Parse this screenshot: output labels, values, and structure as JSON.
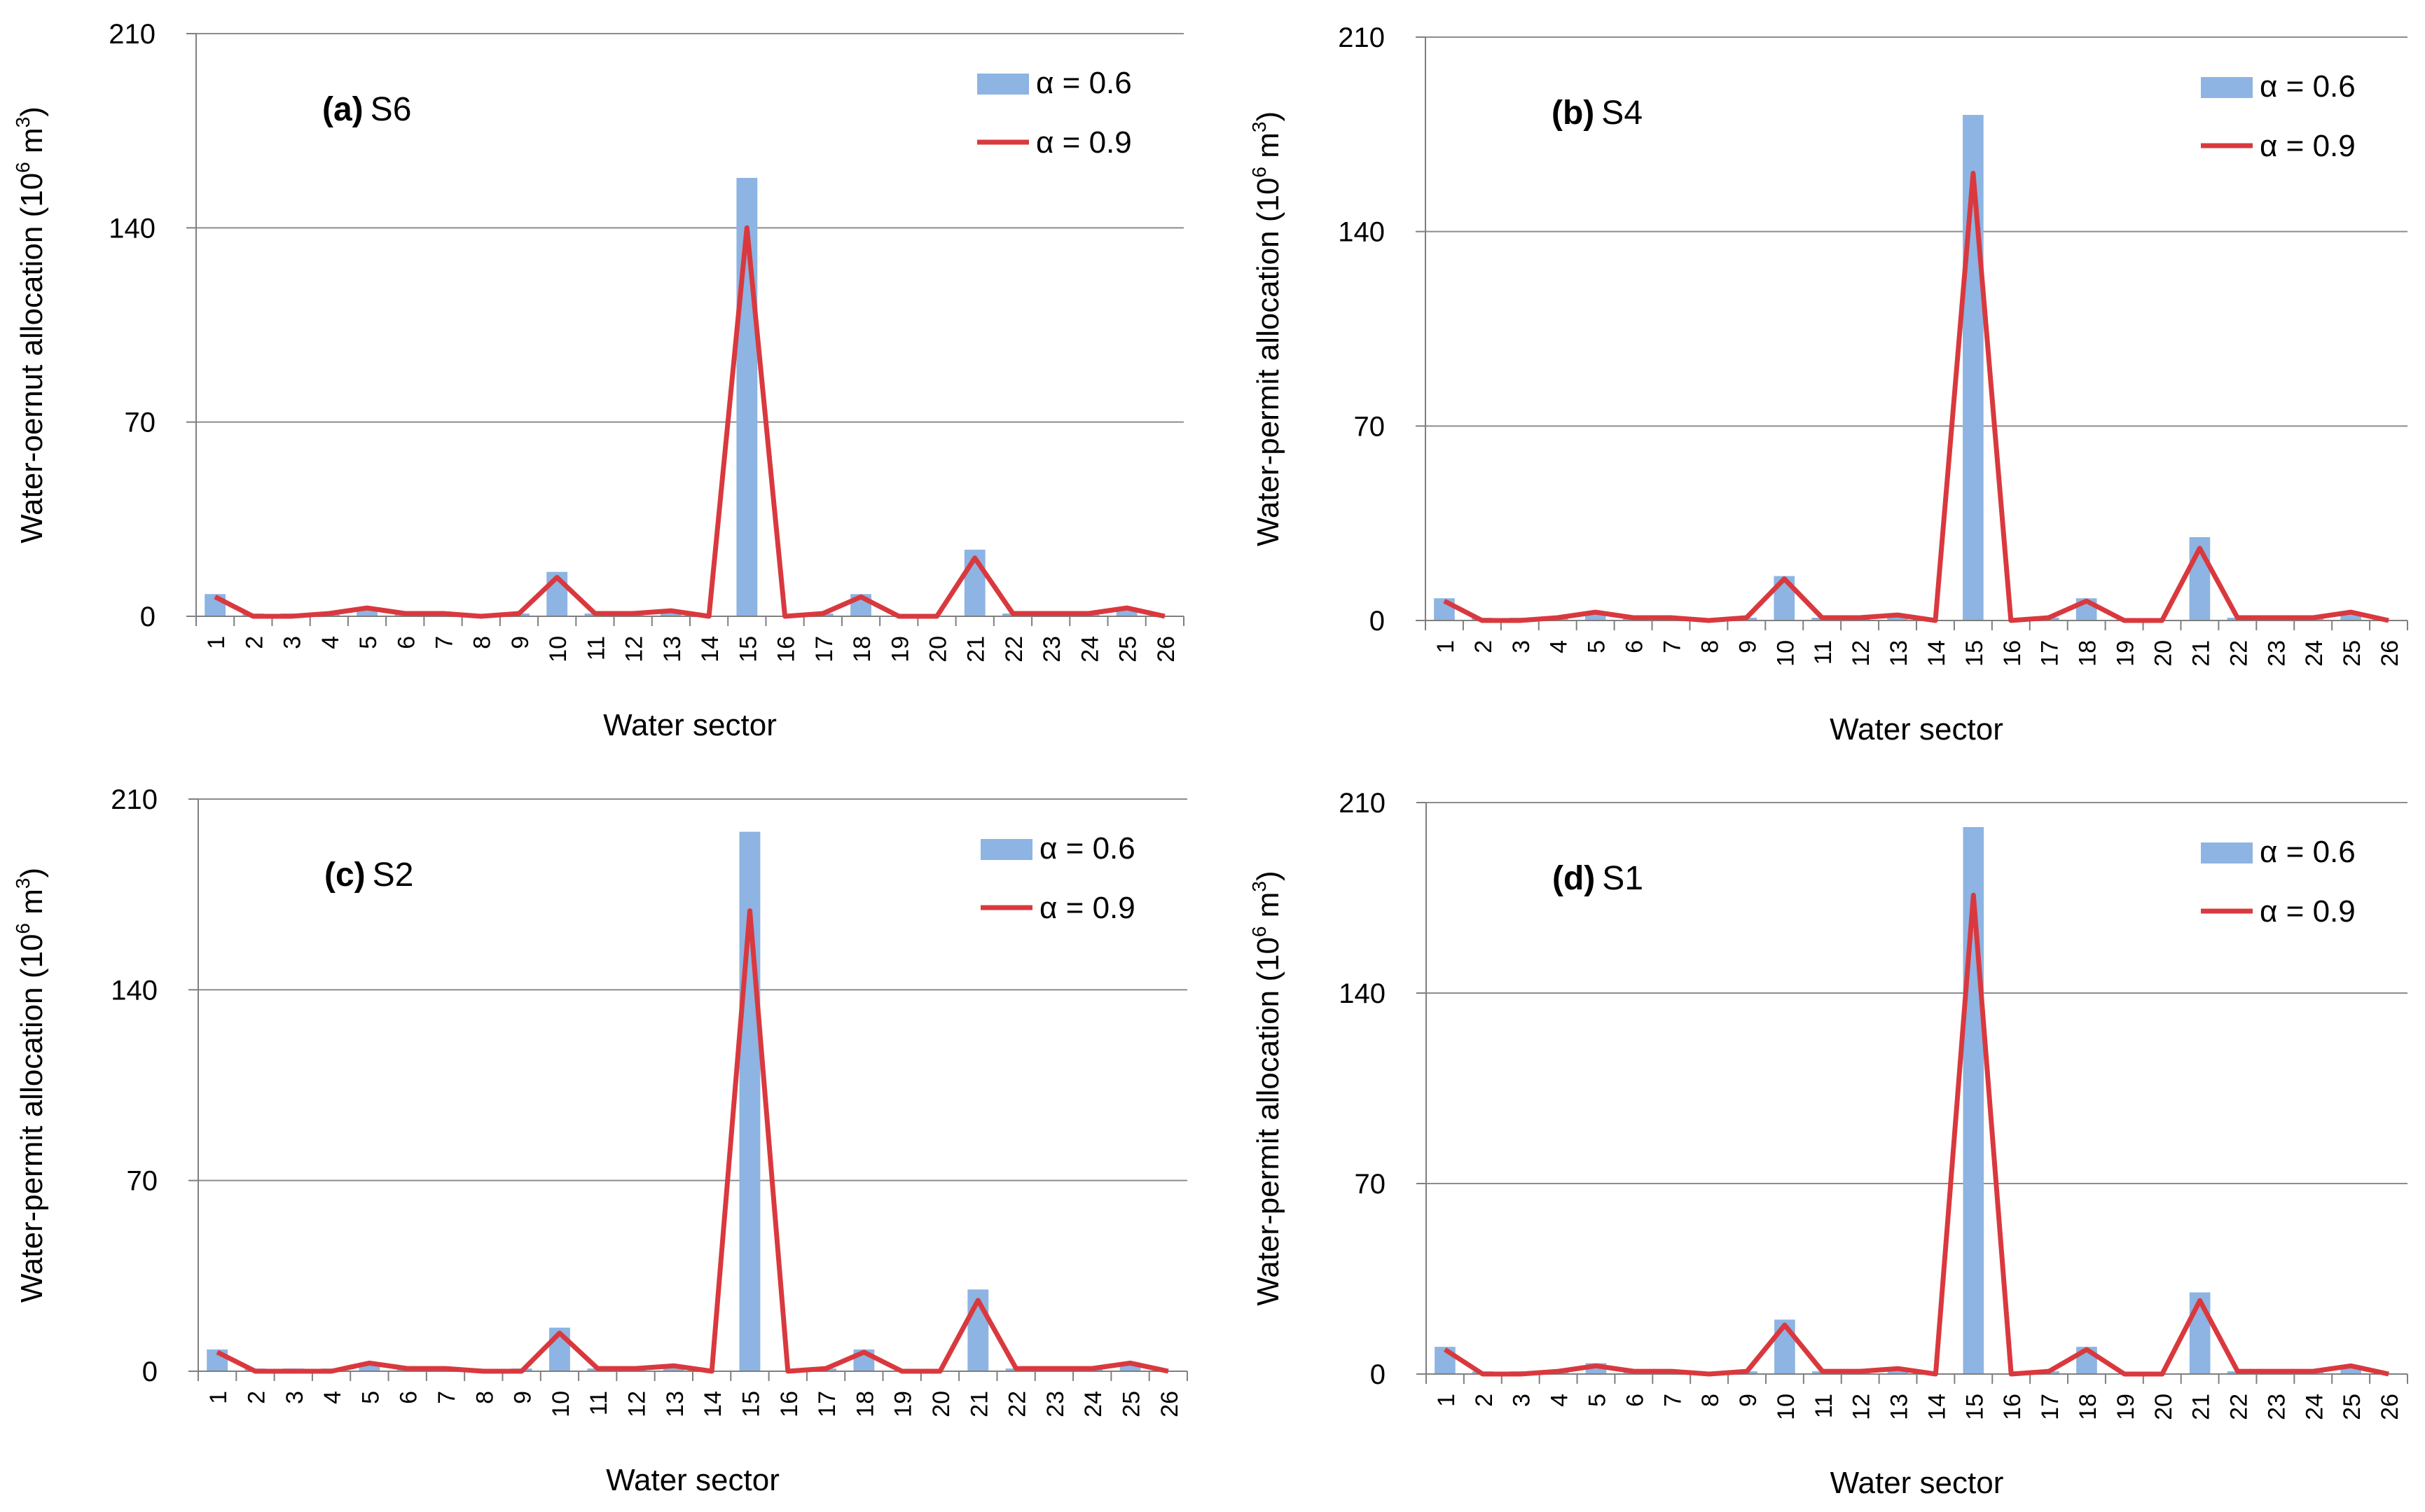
{
  "chart_data": [
    {
      "type": "bar",
      "label_prefix": "(a)",
      "label_name": "S6",
      "ylabel_main": "Water-oernut allocation (10",
      "ylabel_sup1": "6",
      "ylabel_mid": " m",
      "ylabel_sup2": "3",
      "ylabel_end": ")",
      "xlabel": "Water sector",
      "ylim": [
        0,
        210
      ],
      "yticks": [
        0,
        70,
        140,
        210
      ],
      "categories": [
        "1",
        "2",
        "3",
        "4",
        "5",
        "6",
        "7",
        "8",
        "9",
        "10",
        "11",
        "12",
        "13",
        "14",
        "15",
        "16",
        "17",
        "18",
        "19",
        "20",
        "21",
        "22",
        "23",
        "24",
        "25",
        "26"
      ],
      "series": [
        {
          "name": "α = 0.6",
          "type": "bar",
          "color": "#8db4e2",
          "values": [
            8,
            1,
            1,
            1,
            3,
            1,
            1,
            0,
            1,
            16,
            1,
            1,
            2,
            0,
            158,
            0,
            1,
            8,
            0,
            0,
            24,
            1,
            1,
            1,
            3,
            0
          ]
        },
        {
          "name": "α = 0.9",
          "type": "line",
          "color": "#d9393e",
          "values": [
            7,
            0,
            0,
            1,
            3,
            1,
            1,
            0,
            1,
            14,
            1,
            1,
            2,
            0,
            140,
            0,
            1,
            7,
            0,
            0,
            21,
            1,
            1,
            1,
            3,
            0
          ]
        }
      ]
    },
    {
      "type": "bar",
      "label_prefix": "(b)",
      "label_name": "S4",
      "ylabel_main": "Water-permit allocation (10",
      "ylabel_sup1": "6",
      "ylabel_mid": " m",
      "ylabel_sup2": "3",
      "ylabel_end": ")",
      "xlabel": "Water sector",
      "ylim": [
        0,
        210
      ],
      "yticks": [
        0,
        70,
        140,
        210
      ],
      "categories": [
        "1",
        "2",
        "3",
        "4",
        "5",
        "6",
        "7",
        "8",
        "9",
        "10",
        "11",
        "12",
        "13",
        "14",
        "15",
        "16",
        "17",
        "18",
        "19",
        "20",
        "21",
        "22",
        "23",
        "24",
        "25",
        "26"
      ],
      "series": [
        {
          "name": "α = 0.6",
          "type": "bar",
          "color": "#8db4e2",
          "values": [
            8,
            1,
            1,
            1,
            3,
            1,
            1,
            0,
            1,
            16,
            1,
            1,
            2,
            0,
            182,
            0,
            1,
            8,
            0,
            0,
            30,
            1,
            1,
            1,
            3,
            0
          ]
        },
        {
          "name": "α = 0.9",
          "type": "line",
          "color": "#d9393e",
          "values": [
            7,
            0,
            0,
            1,
            3,
            1,
            1,
            0,
            1,
            15,
            1,
            1,
            2,
            0,
            161,
            0,
            1,
            7,
            0,
            0,
            26,
            1,
            1,
            1,
            3,
            0
          ]
        }
      ]
    },
    {
      "type": "bar",
      "label_prefix": "(c)",
      "label_name": "S2",
      "ylabel_main": "Water-permit  allocation (10",
      "ylabel_sup1": "6",
      "ylabel_mid": " m",
      "ylabel_sup2": "3",
      "ylabel_end": ")",
      "xlabel": "Water sector",
      "ylim": [
        0,
        210
      ],
      "yticks": [
        0,
        70,
        140,
        210
      ],
      "categories": [
        "1",
        "2",
        "3",
        "4",
        "5",
        "6",
        "7",
        "8",
        "9",
        "10",
        "11",
        "12",
        "13",
        "14",
        "15",
        "16",
        "17",
        "18",
        "19",
        "20",
        "21",
        "22",
        "23",
        "24",
        "25",
        "26"
      ],
      "series": [
        {
          "name": "α = 0.6",
          "type": "bar",
          "color": "#8db4e2",
          "values": [
            8,
            1,
            1,
            1,
            3,
            1,
            1,
            0,
            1,
            16,
            1,
            1,
            2,
            0,
            198,
            0,
            1,
            8,
            0,
            0,
            30,
            1,
            1,
            1,
            3,
            0
          ]
        },
        {
          "name": "α = 0.9",
          "type": "line",
          "color": "#d9393e",
          "values": [
            7,
            0,
            0,
            0,
            3,
            1,
            1,
            0,
            0,
            14,
            1,
            1,
            2,
            0,
            169,
            0,
            1,
            7,
            0,
            0,
            26,
            1,
            1,
            1,
            3,
            0
          ]
        }
      ]
    },
    {
      "type": "bar",
      "label_prefix": "(d)",
      "label_name": "S1",
      "ylabel_main": "Water-permit  allocation (10",
      "ylabel_sup1": "6",
      "ylabel_mid": " m",
      "ylabel_sup2": "3",
      "ylabel_end": ")",
      "xlabel": "Water sector",
      "ylim": [
        0,
        210
      ],
      "yticks": [
        0,
        70,
        140,
        210
      ],
      "categories": [
        "1",
        "2",
        "3",
        "4",
        "5",
        "6",
        "7",
        "8",
        "9",
        "10",
        "11",
        "12",
        "13",
        "14",
        "15",
        "16",
        "17",
        "18",
        "19",
        "20",
        "21",
        "22",
        "23",
        "24",
        "25",
        "26"
      ],
      "series": [
        {
          "name": "α = 0.6",
          "type": "bar",
          "color": "#8db4e2",
          "values": [
            10,
            1,
            1,
            1,
            4,
            1,
            1,
            0,
            1,
            20,
            1,
            1,
            2,
            0,
            201,
            0,
            1,
            10,
            0,
            0,
            30,
            1,
            1,
            1,
            3,
            0
          ]
        },
        {
          "name": "α = 0.9",
          "type": "line",
          "color": "#d9393e",
          "values": [
            9,
            0,
            0,
            1,
            3,
            1,
            1,
            0,
            1,
            18,
            1,
            1,
            2,
            0,
            176,
            0,
            1,
            9,
            0,
            0,
            27,
            1,
            1,
            1,
            3,
            0
          ]
        }
      ]
    }
  ]
}
